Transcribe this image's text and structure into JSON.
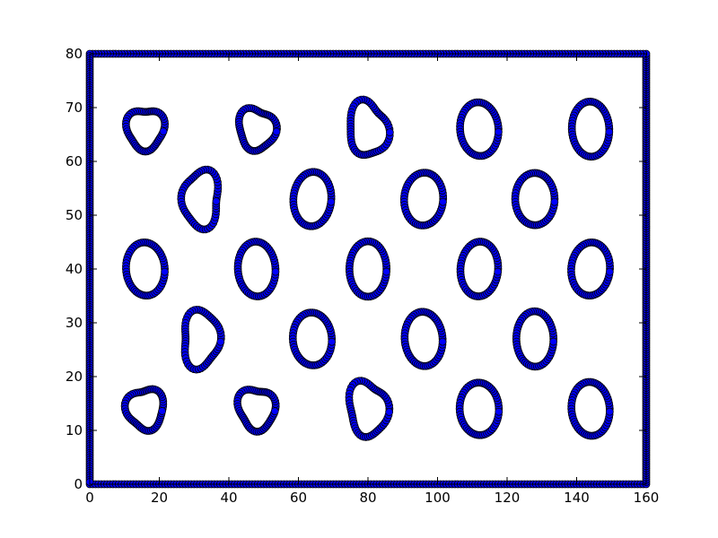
{
  "chart_data": {
    "type": "scatter",
    "title": "",
    "xlabel": "",
    "ylabel": "",
    "xlim": [
      0,
      160
    ],
    "ylim": [
      0,
      80
    ],
    "xticks": [
      0,
      20,
      40,
      60,
      80,
      100,
      120,
      140,
      160
    ],
    "yticks": [
      0,
      10,
      20,
      30,
      40,
      50,
      60,
      70,
      80
    ],
    "grid": false,
    "legend": "none",
    "marker": "circle",
    "marker_color": "#0000ff",
    "marker_edge_color": "#000000",
    "boundary": {
      "description": "points tracing the full rectangular border",
      "corners": [
        [
          0,
          0
        ],
        [
          160,
          0
        ],
        [
          160,
          80
        ],
        [
          0,
          80
        ]
      ]
    },
    "loops": [
      {
        "shape": "blob",
        "center": [
          16,
          66
        ],
        "rx": 5,
        "ry": 4
      },
      {
        "shape": "blob",
        "center": [
          48,
          66
        ],
        "rx": 5,
        "ry": 4
      },
      {
        "shape": "blob",
        "center": [
          80,
          66
        ],
        "rx": 5.5,
        "ry": 5
      },
      {
        "shape": "ellipse",
        "center": [
          112,
          66
        ],
        "rx": 5.5,
        "ry": 5
      },
      {
        "shape": "ellipse",
        "center": [
          144,
          66
        ],
        "rx": 5.5,
        "ry": 5
      },
      {
        "shape": "blob",
        "center": [
          32,
          53
        ],
        "rx": 5.5,
        "ry": 5
      },
      {
        "shape": "ellipse",
        "center": [
          64,
          53
        ],
        "rx": 5.5,
        "ry": 5
      },
      {
        "shape": "ellipse",
        "center": [
          96,
          53
        ],
        "rx": 5.5,
        "ry": 5
      },
      {
        "shape": "ellipse",
        "center": [
          128,
          53
        ],
        "rx": 5.5,
        "ry": 5
      },
      {
        "shape": "ellipse",
        "center": [
          16,
          40
        ],
        "rx": 5.5,
        "ry": 5
      },
      {
        "shape": "ellipse",
        "center": [
          48,
          40
        ],
        "rx": 5.5,
        "ry": 5
      },
      {
        "shape": "ellipse",
        "center": [
          80,
          40
        ],
        "rx": 5.5,
        "ry": 5
      },
      {
        "shape": "ellipse",
        "center": [
          112,
          40
        ],
        "rx": 5.5,
        "ry": 5
      },
      {
        "shape": "ellipse",
        "center": [
          144,
          40
        ],
        "rx": 5.5,
        "ry": 5
      },
      {
        "shape": "blob",
        "center": [
          32,
          27
        ],
        "rx": 5.5,
        "ry": 5
      },
      {
        "shape": "ellipse",
        "center": [
          64,
          27
        ],
        "rx": 5.5,
        "ry": 5
      },
      {
        "shape": "ellipse",
        "center": [
          96,
          27
        ],
        "rx": 5.5,
        "ry": 5
      },
      {
        "shape": "ellipse",
        "center": [
          128,
          27
        ],
        "rx": 5.5,
        "ry": 5
      },
      {
        "shape": "blob",
        "center": [
          16,
          14
        ],
        "rx": 5,
        "ry": 4
      },
      {
        "shape": "blob",
        "center": [
          48,
          14
        ],
        "rx": 5,
        "ry": 4
      },
      {
        "shape": "blob",
        "center": [
          80,
          14
        ],
        "rx": 5.5,
        "ry": 5
      },
      {
        "shape": "ellipse",
        "center": [
          112,
          14
        ],
        "rx": 5.5,
        "ry": 5
      },
      {
        "shape": "ellipse",
        "center": [
          144,
          14
        ],
        "rx": 5.5,
        "ry": 5
      }
    ]
  }
}
